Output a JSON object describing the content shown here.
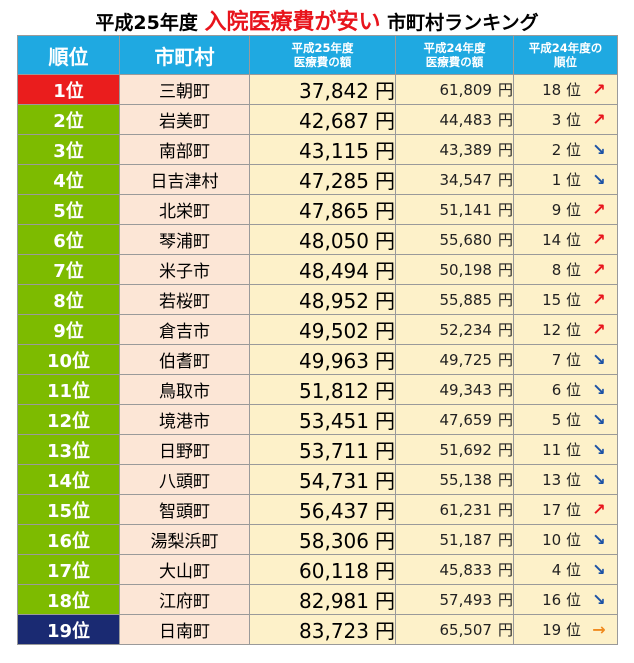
{
  "title": {
    "prefix": "平成25年度",
    "highlight": "入院医療費が安い",
    "suffix": "市町村ランキング"
  },
  "colors": {
    "header": "#1fa9e1",
    "rank_default": "#7dbb00",
    "rank_first": "#ea1d1d",
    "rank_last": "#1a2a72",
    "town_bg": "#fce6d6",
    "value_bg": "#fdf1c9",
    "up": "#e8141c",
    "down": "#1b52a6",
    "flat": "#f08a1e"
  },
  "headers": {
    "rank": "順位",
    "town": "市町村",
    "h25_line1": "平成25年度",
    "h25_line2": "医療費の額",
    "h24_line1": "平成24年度",
    "h24_line2": "医療費の額",
    "prev_line1": "平成24年度の",
    "prev_line2": "順位"
  },
  "rows": [
    {
      "rank": "1位",
      "town": "三朝町",
      "amount25": "37,842",
      "unit25": "円",
      "amount24": "61,809",
      "unit24": "円",
      "prev": "18 位",
      "trend": "up"
    },
    {
      "rank": "2位",
      "town": "岩美町",
      "amount25": "42,687",
      "unit25": "円",
      "amount24": "44,483",
      "unit24": "円",
      "prev": "3 位",
      "trend": "up"
    },
    {
      "rank": "3位",
      "town": "南部町",
      "amount25": "43,115",
      "unit25": "円",
      "amount24": "43,389",
      "unit24": "円",
      "prev": "2 位",
      "trend": "down"
    },
    {
      "rank": "4位",
      "town": "日吉津村",
      "amount25": "47,285",
      "unit25": "円",
      "amount24": "34,547",
      "unit24": "円",
      "prev": "1 位",
      "trend": "down"
    },
    {
      "rank": "5位",
      "town": "北栄町",
      "amount25": "47,865",
      "unit25": "円",
      "amount24": "51,141",
      "unit24": "円",
      "prev": "9 位",
      "trend": "up"
    },
    {
      "rank": "6位",
      "town": "琴浦町",
      "amount25": "48,050",
      "unit25": "円",
      "amount24": "55,680",
      "unit24": "円",
      "prev": "14 位",
      "trend": "up"
    },
    {
      "rank": "7位",
      "town": "米子市",
      "amount25": "48,494",
      "unit25": "円",
      "amount24": "50,198",
      "unit24": "円",
      "prev": "8 位",
      "trend": "up"
    },
    {
      "rank": "8位",
      "town": "若桜町",
      "amount25": "48,952",
      "unit25": "円",
      "amount24": "55,885",
      "unit24": "円",
      "prev": "15 位",
      "trend": "up"
    },
    {
      "rank": "9位",
      "town": "倉吉市",
      "amount25": "49,502",
      "unit25": "円",
      "amount24": "52,234",
      "unit24": "円",
      "prev": "12 位",
      "trend": "up"
    },
    {
      "rank": "10位",
      "town": "伯耆町",
      "amount25": "49,963",
      "unit25": "円",
      "amount24": "49,725",
      "unit24": "円",
      "prev": "7 位",
      "trend": "down"
    },
    {
      "rank": "11位",
      "town": "鳥取市",
      "amount25": "51,812",
      "unit25": "円",
      "amount24": "49,343",
      "unit24": "円",
      "prev": "6 位",
      "trend": "down"
    },
    {
      "rank": "12位",
      "town": "境港市",
      "amount25": "53,451",
      "unit25": "円",
      "amount24": "47,659",
      "unit24": "円",
      "prev": "5 位",
      "trend": "down"
    },
    {
      "rank": "13位",
      "town": "日野町",
      "amount25": "53,711",
      "unit25": "円",
      "amount24": "51,692",
      "unit24": "円",
      "prev": "11 位",
      "trend": "down"
    },
    {
      "rank": "14位",
      "town": "八頭町",
      "amount25": "54,731",
      "unit25": "円",
      "amount24": "55,138",
      "unit24": "円",
      "prev": "13 位",
      "trend": "down"
    },
    {
      "rank": "15位",
      "town": "智頭町",
      "amount25": "56,437",
      "unit25": "円",
      "amount24": "61,231",
      "unit24": "円",
      "prev": "17 位",
      "trend": "up"
    },
    {
      "rank": "16位",
      "town": "湯梨浜町",
      "amount25": "58,306",
      "unit25": "円",
      "amount24": "51,187",
      "unit24": "円",
      "prev": "10 位",
      "trend": "down"
    },
    {
      "rank": "17位",
      "town": "大山町",
      "amount25": "60,118",
      "unit25": "円",
      "amount24": "45,833",
      "unit24": "円",
      "prev": "4 位",
      "trend": "down"
    },
    {
      "rank": "18位",
      "town": "江府町",
      "amount25": "82,981",
      "unit25": "円",
      "amount24": "57,493",
      "unit24": "円",
      "prev": "16 位",
      "trend": "down"
    },
    {
      "rank": "19位",
      "town": "日南町",
      "amount25": "83,723",
      "unit25": "円",
      "amount24": "65,507",
      "unit24": "円",
      "prev": "19 位",
      "trend": "flat"
    }
  ],
  "trend_icons": {
    "up": "arrow-up-right-icon",
    "down": "arrow-down-right-icon",
    "flat": "arrow-right-icon"
  }
}
